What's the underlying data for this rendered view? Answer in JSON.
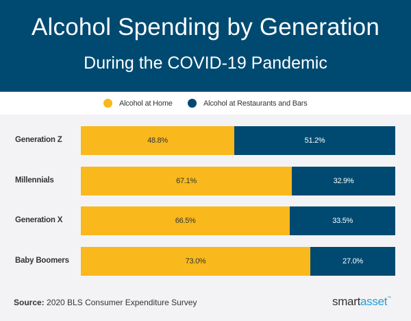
{
  "header": {
    "title": "Alcohol Spending by Generation",
    "subtitle": "During the COVID-19 Pandemic"
  },
  "chart_data": {
    "type": "bar",
    "orientation": "horizontal",
    "stacked": true,
    "title": "Alcohol Spending by Generation",
    "subtitle": "During the COVID-19 Pandemic",
    "categories": [
      "Generation Z",
      "Millennials",
      "Generation X",
      "Baby Boomers"
    ],
    "series": [
      {
        "name": "Alcohol at Home",
        "color": "#f9b81b",
        "values": [
          48.8,
          67.1,
          66.5,
          73.0
        ],
        "labels": [
          "48.8%",
          "67.1%",
          "66.5%",
          "73.0%"
        ]
      },
      {
        "name": "Alcohol at Restaurants and Bars",
        "color": "#004a71",
        "values": [
          51.2,
          32.9,
          33.5,
          27.0
        ],
        "labels": [
          "51.2%",
          "32.9%",
          "33.5%",
          "27.0%"
        ]
      }
    ],
    "xlim": [
      0,
      100
    ],
    "xlabel": "",
    "ylabel": "",
    "grid": false,
    "legend_position": "top-center"
  },
  "legend": [
    {
      "label": "Alcohol at Home",
      "color": "#f9b81b"
    },
    {
      "label": "Alcohol at Restaurants and Bars",
      "color": "#004a71"
    }
  ],
  "footer": {
    "source_label": "Source:",
    "source_text": " 2020 BLS Consumer Expenditure Survey",
    "logo_smart": "smart",
    "logo_asset": "asset",
    "logo_tm": "™"
  }
}
